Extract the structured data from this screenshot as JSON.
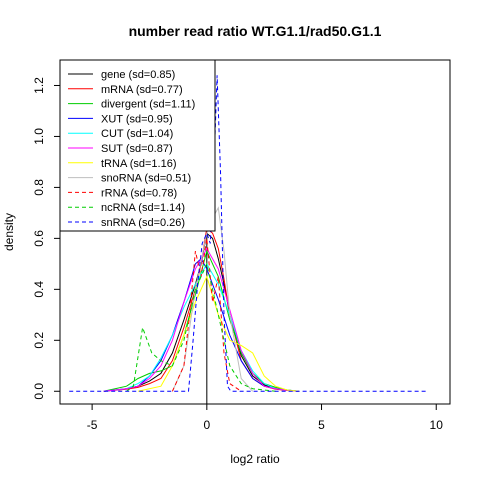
{
  "chart_data": {
    "type": "line",
    "title": "number read ratio WT.G1.1/rad50.G1.1",
    "xlabel": "log2 ratio",
    "ylabel": "density",
    "xlim": [
      -6.4,
      10.6
    ],
    "ylim": [
      -0.05,
      1.3
    ],
    "x_ticks": [
      -5,
      0,
      5,
      10
    ],
    "y_ticks": [
      0.0,
      0.2,
      0.4,
      0.6,
      0.8,
      1.0,
      1.2
    ],
    "legend_position": "top-left",
    "grid": false,
    "zero_line_x": 0,
    "series": [
      {
        "name": "gene (sd=0.85)",
        "color": "#000000",
        "dash": "solid",
        "x": [
          -4.5,
          -4,
          -3.5,
          -3,
          -2.5,
          -2,
          -1.5,
          -1,
          -0.5,
          -0.25,
          0,
          0.25,
          0.5,
          0.75,
          1,
          1.5,
          2,
          2.5,
          3,
          3.5,
          4
        ],
        "y": [
          0,
          0.005,
          0.01,
          0.02,
          0.04,
          0.07,
          0.15,
          0.28,
          0.42,
          0.5,
          0.62,
          0.6,
          0.52,
          0.42,
          0.3,
          0.14,
          0.06,
          0.025,
          0.01,
          0.005,
          0
        ]
      },
      {
        "name": "mRNA (sd=0.77)",
        "color": "#ff0000",
        "dash": "solid",
        "x": [
          -4.5,
          -4,
          -3.5,
          -3,
          -2.5,
          -2,
          -1.5,
          -1,
          -0.5,
          -0.25,
          0,
          0.25,
          0.5,
          0.75,
          1,
          1.5,
          2,
          2.5,
          3,
          3.5,
          4
        ],
        "y": [
          0,
          0.004,
          0.008,
          0.015,
          0.03,
          0.05,
          0.12,
          0.25,
          0.4,
          0.5,
          0.64,
          0.62,
          0.56,
          0.44,
          0.3,
          0.12,
          0.05,
          0.02,
          0.008,
          0.003,
          0
        ]
      },
      {
        "name": "divergent (sd=1.11)",
        "color": "#00cd00",
        "dash": "solid",
        "x": [
          -4.5,
          -4,
          -3.5,
          -3,
          -2.5,
          -2,
          -1.5,
          -1,
          -0.5,
          0,
          0.5,
          1,
          1.5,
          2,
          2.5,
          3,
          3.5,
          4
        ],
        "y": [
          0,
          0.01,
          0.02,
          0.05,
          0.07,
          0.08,
          0.1,
          0.22,
          0.38,
          0.55,
          0.45,
          0.28,
          0.15,
          0.07,
          0.03,
          0.015,
          0.005,
          0
        ]
      },
      {
        "name": "XUT (sd=0.95)",
        "color": "#0000ff",
        "dash": "solid",
        "x": [
          -4.5,
          -4,
          -3.5,
          -3,
          -2.5,
          -2,
          -1.5,
          -1,
          -0.5,
          -0.25,
          0,
          0.5,
          1,
          1.5,
          2,
          2.5,
          3,
          3.5,
          4
        ],
        "y": [
          0,
          0.005,
          0.01,
          0.02,
          0.06,
          0.12,
          0.22,
          0.35,
          0.5,
          0.52,
          0.48,
          0.36,
          0.22,
          0.12,
          0.05,
          0.02,
          0.01,
          0.004,
          0
        ]
      },
      {
        "name": "CUT (sd=1.04)",
        "color": "#00ffff",
        "dash": "solid",
        "x": [
          -4.5,
          -4,
          -3.5,
          -3,
          -2.5,
          -2,
          -1.5,
          -1,
          -0.5,
          0,
          0.5,
          1,
          1.5,
          2,
          2.5,
          3,
          3.5,
          4
        ],
        "y": [
          0,
          0.005,
          0.01,
          0.03,
          0.06,
          0.13,
          0.22,
          0.33,
          0.42,
          0.5,
          0.42,
          0.3,
          0.16,
          0.08,
          0.03,
          0.01,
          0.005,
          0
        ]
      },
      {
        "name": "SUT (sd=0.87)",
        "color": "#ff00ff",
        "dash": "solid",
        "x": [
          -4.5,
          -4,
          -3.5,
          -3,
          -2.5,
          -2,
          -1.5,
          -1,
          -0.5,
          0,
          0.5,
          1,
          1.5,
          2,
          2.5,
          3,
          3.5,
          4
        ],
        "y": [
          0,
          0.005,
          0.01,
          0.02,
          0.05,
          0.1,
          0.2,
          0.35,
          0.48,
          0.56,
          0.48,
          0.32,
          0.16,
          0.07,
          0.02,
          0.01,
          0.004,
          0
        ]
      },
      {
        "name": "tRNA (sd=1.16)",
        "color": "#ffff00",
        "dash": "solid",
        "x": [
          -3,
          -2,
          -1.5,
          -1,
          -0.5,
          0,
          0.5,
          1,
          1.5,
          2,
          2.5,
          3,
          3.5,
          4
        ],
        "y": [
          0,
          0.02,
          0.1,
          0.22,
          0.35,
          0.45,
          0.3,
          0.2,
          0.18,
          0.15,
          0.06,
          0.02,
          0.005,
          0
        ]
      },
      {
        "name": "snoRNA (sd=0.51)",
        "color": "#bebebe",
        "dash": "solid",
        "x": [
          -1.5,
          -1,
          -0.5,
          0,
          0.25,
          0.5,
          0.75,
          1,
          1.5,
          2
        ],
        "y": [
          0,
          0.1,
          0.4,
          0.62,
          0.68,
          0.72,
          0.55,
          0.3,
          0.05,
          0
        ]
      },
      {
        "name": "rRNA (sd=0.78)",
        "color": "#ff0000",
        "dash": "dashed",
        "x": [
          -1.5,
          -1,
          -0.75,
          -0.5,
          -0.25,
          0,
          0.25,
          0.5,
          0.75,
          1,
          1.5
        ],
        "y": [
          0,
          0.1,
          0.3,
          0.55,
          0.45,
          0.6,
          0.35,
          0.45,
          0.15,
          0.03,
          0
        ]
      },
      {
        "name": "ncRNA (sd=1.14)",
        "color": "#00cd00",
        "dash": "dashed",
        "x": [
          -3.5,
          -3.2,
          -2.8,
          -2.4,
          -2,
          -1.5,
          -1,
          -0.5,
          0,
          0.5,
          1,
          1.5,
          2,
          2.5,
          3
        ],
        "y": [
          0,
          0.02,
          0.25,
          0.15,
          0.12,
          0.1,
          0.2,
          0.4,
          0.5,
          0.3,
          0.1,
          0.03,
          0.01,
          0.005,
          0
        ]
      },
      {
        "name": "snRNA (sd=0.26)",
        "color": "#0000ff",
        "dash": "dashed",
        "x": [
          -6,
          -0.8,
          -0.6,
          -0.4,
          -0.2,
          0,
          0.15,
          0.3,
          0.45,
          0.6,
          0.75,
          0.9,
          1.05,
          9.6
        ],
        "y": [
          0,
          0,
          0.2,
          0.42,
          0.58,
          0.62,
          0.58,
          0.85,
          1.24,
          0.85,
          0.3,
          0.02,
          0,
          0
        ]
      }
    ]
  }
}
